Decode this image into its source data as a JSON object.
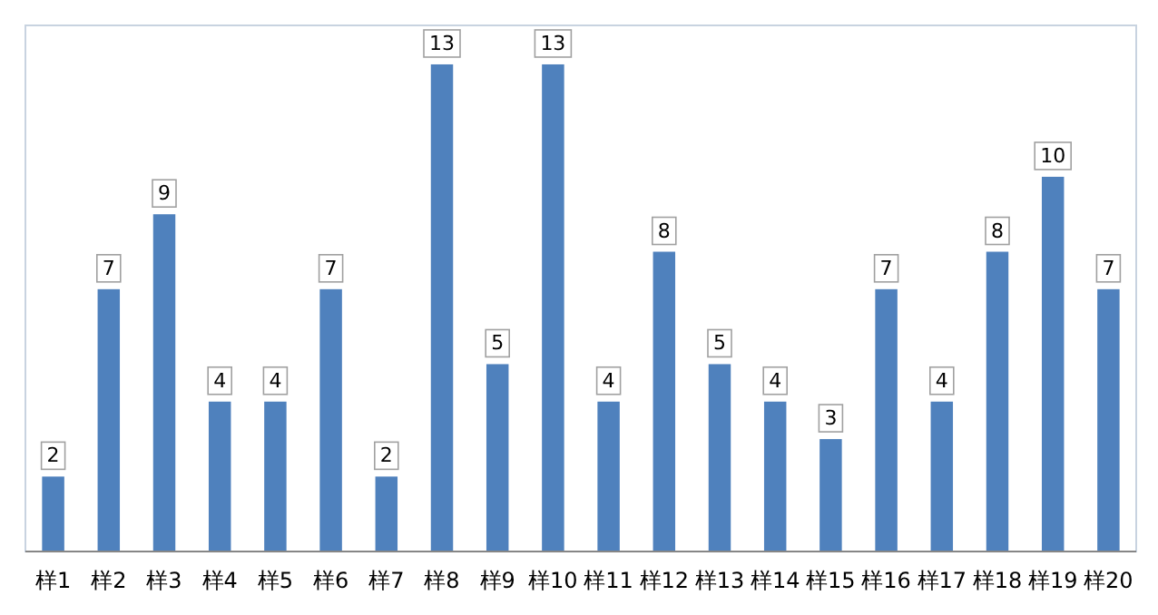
{
  "chart_data": {
    "type": "bar",
    "categories": [
      "样1",
      "样2",
      "样3",
      "样4",
      "样5",
      "样6",
      "样7",
      "样8",
      "样9",
      "样10",
      "样11",
      "样12",
      "样13",
      "样14",
      "样15",
      "样16",
      "样17",
      "样18",
      "样19",
      "样20"
    ],
    "values": [
      2,
      7,
      9,
      4,
      4,
      7,
      2,
      13,
      5,
      13,
      4,
      8,
      5,
      4,
      3,
      7,
      4,
      8,
      10,
      7
    ],
    "color": "#4f81bd",
    "data_labels": true
  }
}
